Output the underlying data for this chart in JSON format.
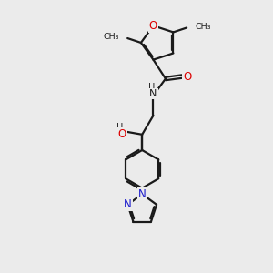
{
  "bg_color": "#ebebeb",
  "bond_color": "#1a1a1a",
  "O_color": "#dd0000",
  "N_color": "#1a1acc",
  "line_width": 1.6,
  "dbo": 0.055,
  "xlim": [
    0,
    10
  ],
  "ylim": [
    0,
    12
  ]
}
